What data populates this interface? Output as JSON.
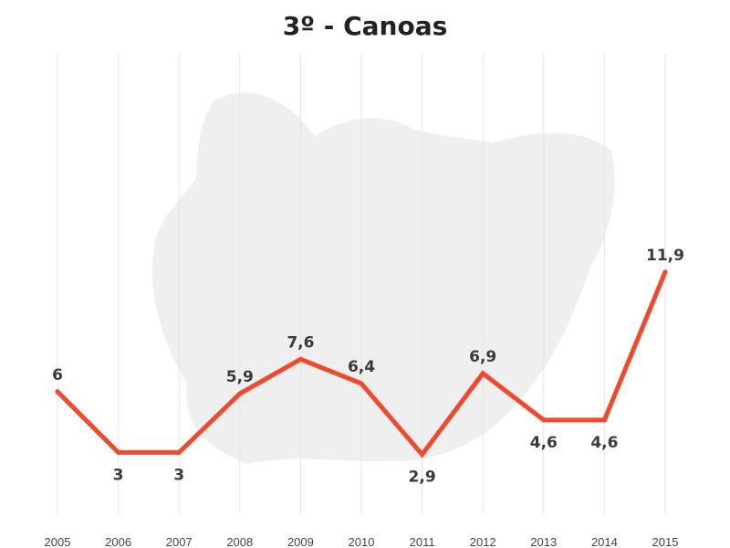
{
  "chart_data": {
    "type": "line",
    "title": "3º - Canoas",
    "xlabel": "",
    "ylabel": "",
    "categories": [
      "2005",
      "2006",
      "2007",
      "2008",
      "2009",
      "2010",
      "2011",
      "2012",
      "2013",
      "2014",
      "2015"
    ],
    "series": [
      {
        "values": [
          6,
          3,
          3,
          5.9,
          7.6,
          6.4,
          2.9,
          6.9,
          4.6,
          4.6,
          11.9
        ],
        "labels": [
          "6",
          "3",
          "3",
          "5,9",
          "7,6",
          "6,4",
          "2,9",
          "6,9",
          "4,6",
          "4,6",
          "11,9"
        ]
      }
    ],
    "ylim": [
      0,
      14
    ],
    "grid": "vertical",
    "legend": "none",
    "colors": {
      "line": "#f04a2e",
      "grid": "#e6e6e6",
      "map_background": "#efefef"
    }
  }
}
